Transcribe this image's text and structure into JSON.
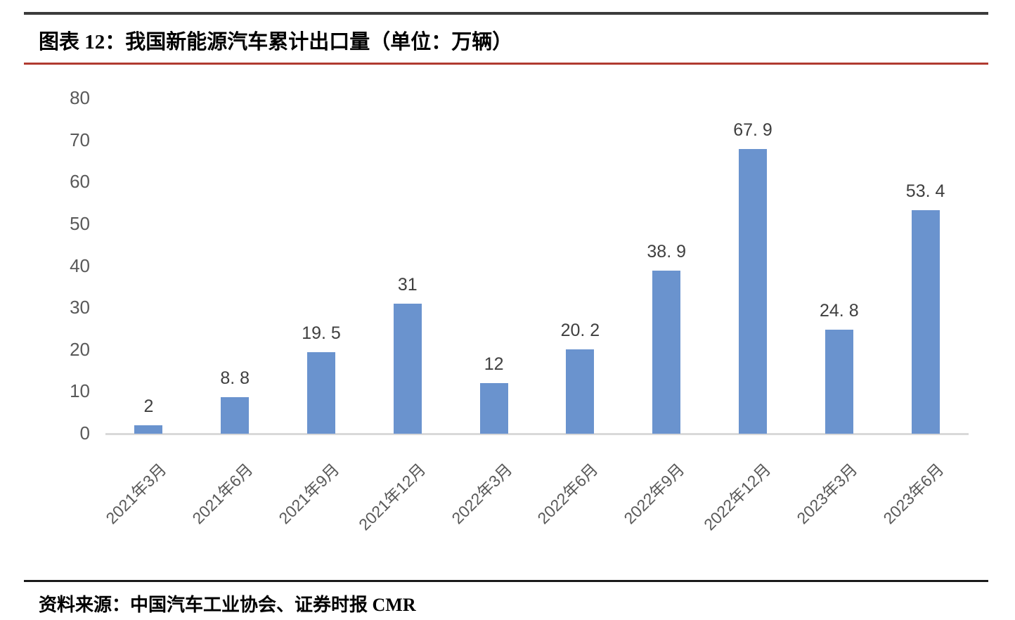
{
  "header": {
    "title": "图表 12：我国新能源汽车累计出口量（单位：万辆）"
  },
  "footer": {
    "source": "资料来源：中国汽车工业协会、证券时报 CMR"
  },
  "chart_data": {
    "type": "bar",
    "title": "图表 12：我国新能源汽车累计出口量（单位：万辆）",
    "unit": "万辆",
    "categories": [
      "2021年3月",
      "2021年6月",
      "2021年9月",
      "2021年12月",
      "2022年3月",
      "2022年6月",
      "2022年9月",
      "2022年12月",
      "2023年3月",
      "2023年6月"
    ],
    "values": [
      2,
      8.8,
      19.5,
      31,
      12,
      20.2,
      38.9,
      67.9,
      24.8,
      53.4
    ],
    "value_labels": [
      "2",
      "8. 8",
      "19. 5",
      "31",
      "12",
      "20. 2",
      "38. 9",
      "67. 9",
      "24. 8",
      "53. 4"
    ],
    "xlabel": "",
    "ylabel": "",
    "ylim": [
      0,
      80
    ],
    "yticks": [
      0,
      10,
      20,
      30,
      40,
      50,
      60,
      70,
      80
    ],
    "grid": false,
    "legend": false,
    "colors": {
      "bar": "#6a93ce",
      "axis_labels": "#595959",
      "data_labels": "#3f3f3f",
      "baseline": "#d9d9d9"
    }
  },
  "styles": {
    "rule_dark": "#3b3b3b",
    "rule_red": "#b03a30",
    "rule_bottom": "#1a1a1a"
  }
}
